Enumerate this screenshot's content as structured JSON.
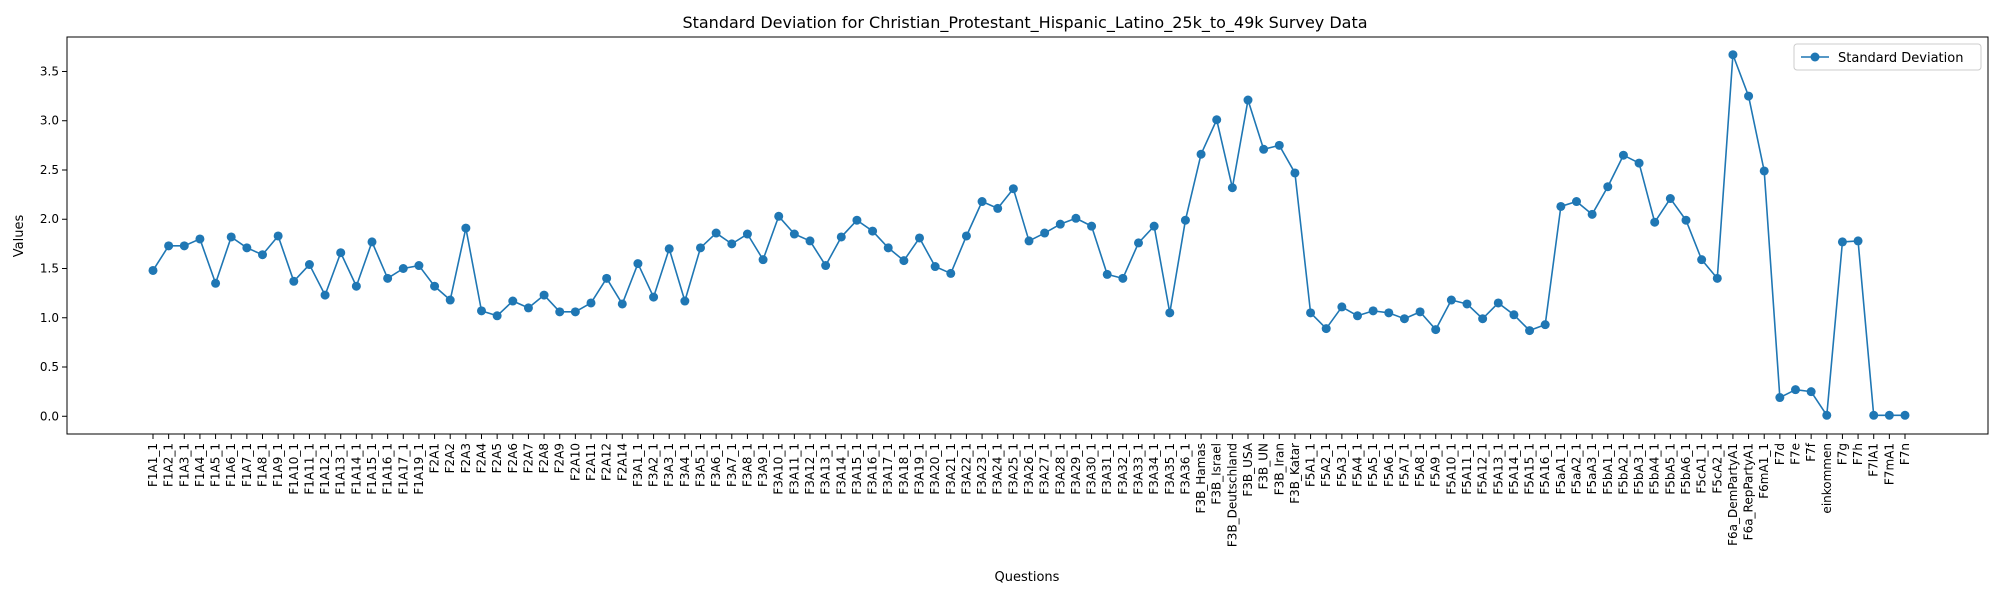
{
  "chart_data": {
    "type": "line",
    "title": "Standard Deviation for Christian_Protestant_Hispanic_Latino_25k_to_49k Survey Data",
    "xlabel": "Questions",
    "ylabel": "Values",
    "ylim": [
      -0.18,
      3.85
    ],
    "yticks": [
      0.0,
      0.5,
      1.0,
      1.5,
      2.0,
      2.5,
      3.0,
      3.5
    ],
    "ytick_labels": [
      "0.0",
      "0.5",
      "1.0",
      "1.5",
      "2.0",
      "2.5",
      "3.0",
      "3.5"
    ],
    "grid": false,
    "legend_position": "top-right",
    "color": "#1f77b4",
    "categories": [
      "F1A1_1",
      "F1A2_1",
      "F1A3_1",
      "F1A4_1",
      "F1A5_1",
      "F1A6_1",
      "F1A7_1",
      "F1A8_1",
      "F1A9_1",
      "F1A10_1",
      "F1A11_1",
      "F1A12_1",
      "F1A13_1",
      "F1A14_1",
      "F1A15_1",
      "F1A16_1",
      "F1A17_1",
      "F1A19_1",
      "F2A1",
      "F2A2",
      "F2A3",
      "F2A4",
      "F2A5",
      "F2A6",
      "F2A7",
      "F2A8",
      "F2A9",
      "F2A10",
      "F2A11",
      "F2A12",
      "F2A14",
      "F3A1_1",
      "F3A2_1",
      "F3A3_1",
      "F3A4_1",
      "F3A5_1",
      "F3A6_1",
      "F3A7_1",
      "F3A8_1",
      "F3A9_1",
      "F3A10_1",
      "F3A11_1",
      "F3A12_1",
      "F3A13_1",
      "F3A14_1",
      "F3A15_1",
      "F3A16_1",
      "F3A17_1",
      "F3A18_1",
      "F3A19_1",
      "F3A20_1",
      "F3A21_1",
      "F3A22_1",
      "F3A23_1",
      "F3A24_1",
      "F3A25_1",
      "F3A26_1",
      "F3A27_1",
      "F3A28_1",
      "F3A29_1",
      "F3A30_1",
      "F3A31_1",
      "F3A32_1",
      "F3A33_1",
      "F3A34_1",
      "F3A35_1",
      "F3A36_1",
      "F3B_Hamas",
      "F3B_Israel",
      "F3B_Deutschland",
      "F3B_USA",
      "F3B_UN",
      "F3B_Iran",
      "F3B_Katar",
      "F5A1_1",
      "F5A2_1",
      "F5A3_1",
      "F5A4_1",
      "F5A5_1",
      "F5A6_1",
      "F5A7_1",
      "F5A8_1",
      "F5A9_1",
      "F5A10_1",
      "F5A11_1",
      "F5A12_1",
      "F5A13_1",
      "F5A14_1",
      "F5A15_1",
      "F5A16_1",
      "F5aA1_1",
      "F5aA2_1",
      "F5aA3_1",
      "F5bA1_1",
      "F5bA2_1",
      "F5bA3_1",
      "F5bA4_1",
      "F5bA5_1",
      "F5bA6_1",
      "F5cA1_1",
      "F5cA2_1",
      "F6a_DemPartyA1",
      "F6a_RepPartyA1",
      "F6mA1_1",
      "F7d",
      "F7e",
      "F7f",
      "einkommen",
      "F7g",
      "F7h",
      "F7lA1",
      "F7mA1",
      "F7n"
    ],
    "series": [
      {
        "name": "Standard Deviation",
        "values": [
          1.48,
          1.73,
          1.73,
          1.8,
          1.35,
          1.82,
          1.71,
          1.64,
          1.83,
          1.37,
          1.54,
          1.23,
          1.66,
          1.32,
          1.77,
          1.4,
          1.5,
          1.53,
          1.32,
          1.18,
          1.91,
          1.07,
          1.02,
          1.17,
          1.1,
          1.23,
          1.06,
          1.06,
          1.15,
          1.4,
          1.14,
          1.55,
          1.21,
          1.7,
          1.17,
          1.71,
          1.86,
          1.75,
          1.85,
          1.59,
          2.03,
          1.85,
          1.78,
          1.53,
          1.82,
          1.99,
          1.88,
          1.71,
          1.58,
          1.81,
          1.52,
          1.45,
          1.83,
          2.18,
          2.11,
          2.31,
          1.78,
          1.86,
          1.95,
          2.01,
          1.93,
          1.44,
          1.4,
          1.76,
          1.93,
          1.05,
          1.99,
          2.66,
          3.01,
          2.32,
          3.21,
          2.71,
          2.75,
          2.47,
          1.05,
          0.89,
          1.11,
          1.02,
          1.07,
          1.05,
          0.99,
          1.06,
          0.88,
          1.18,
          1.14,
          0.99,
          1.15,
          1.03,
          0.87,
          0.93,
          2.13,
          2.18,
          2.05,
          2.33,
          2.65,
          2.57,
          1.97,
          2.21,
          1.99,
          1.59,
          1.4,
          3.67,
          3.25,
          2.49,
          0.19,
          0.27,
          0.25,
          0.01,
          1.77,
          1.78,
          0.01,
          0.01,
          0.01
        ]
      }
    ]
  }
}
